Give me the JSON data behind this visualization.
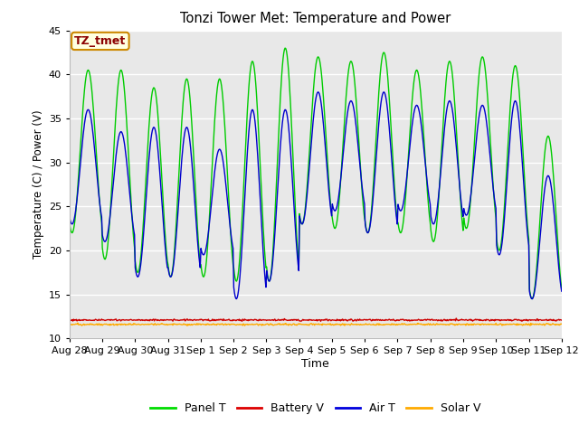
{
  "title": "Tonzi Tower Met: Temperature and Power",
  "xlabel": "Time",
  "ylabel": "Temperature (C) / Power (V)",
  "ylim": [
    10,
    45
  ],
  "annotation": "TZ_tmet",
  "fig_bg": "#ffffff",
  "plot_bg": "#e8e8e8",
  "tick_labels": [
    "Aug 28",
    "Aug 29",
    "Aug 30",
    "Aug 31",
    "Sep 1",
    "Sep 2",
    "Sep 3",
    "Sep 4",
    "Sep 5",
    "Sep 6",
    "Sep 7",
    "Sep 8",
    "Sep 9",
    "Sep 10",
    "Sep 11",
    "Sep 12"
  ],
  "legend_labels": [
    "Panel T",
    "Battery V",
    "Air T",
    "Solar V"
  ],
  "legend_colors": [
    "#00dd00",
    "#dd0000",
    "#0000dd",
    "#ffaa00"
  ],
  "panel_color": "#00cc00",
  "battery_color": "#cc0000",
  "air_color": "#0000cc",
  "solar_color": "#ffaa00",
  "n_days": 15,
  "pts_per_day": 48,
  "panel_peaks": [
    40.5,
    40.5,
    38.5,
    39.5,
    39.5,
    41.5,
    43.0,
    42.0,
    41.5,
    42.5,
    40.5,
    41.5,
    42.0,
    41.0,
    33.0
  ],
  "panel_troughs": [
    22.0,
    19.0,
    17.5,
    17.0,
    17.0,
    16.5,
    16.5,
    23.0,
    22.5,
    22.0,
    22.0,
    21.0,
    22.5,
    20.0,
    14.5
  ],
  "air_peaks": [
    36.0,
    33.5,
    34.0,
    34.0,
    31.5,
    36.0,
    36.0,
    38.0,
    37.0,
    38.0,
    36.5,
    37.0,
    36.5,
    37.0,
    28.5
  ],
  "air_troughs": [
    23.0,
    21.0,
    17.0,
    17.0,
    19.5,
    14.5,
    16.5,
    23.0,
    24.5,
    22.0,
    24.5,
    23.0,
    24.0,
    19.5,
    14.5
  ],
  "battery_level": 12.1,
  "solar_level": 11.6,
  "grid_color": "#ffffff",
  "yticks": [
    10,
    15,
    20,
    25,
    30,
    35,
    40,
    45
  ]
}
